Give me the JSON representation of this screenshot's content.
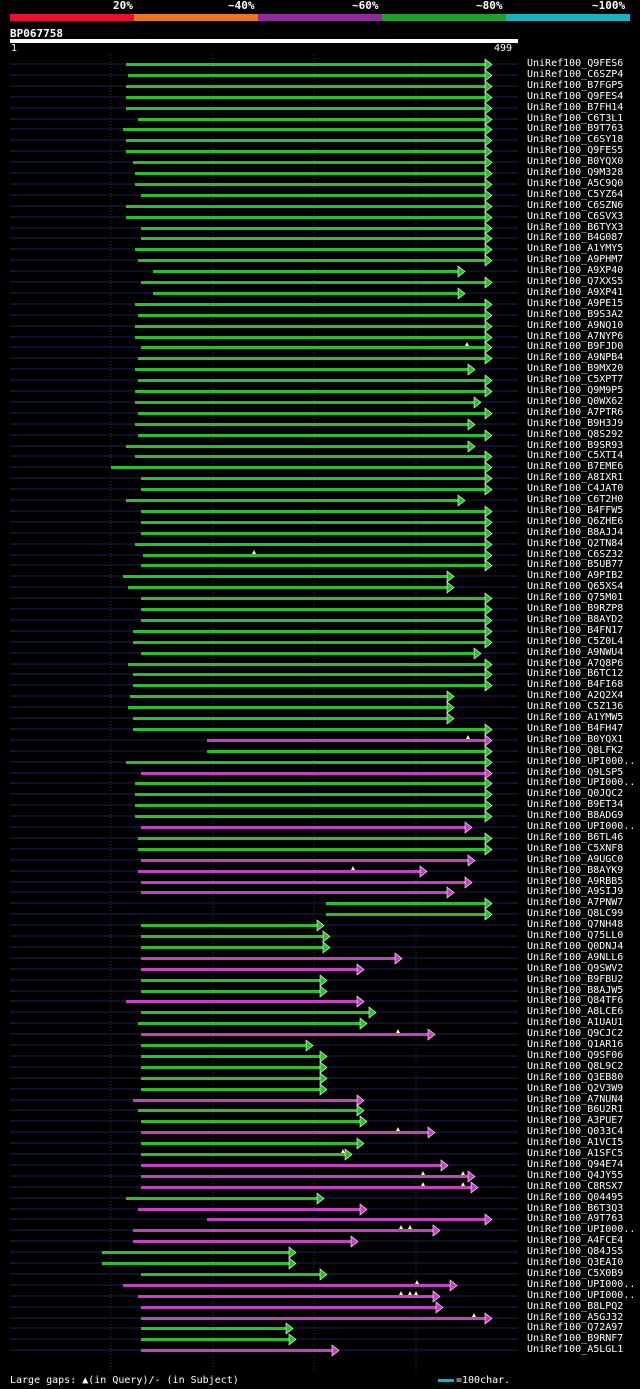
{
  "legend": {
    "labels": [
      "20%",
      "~40%",
      "~60%",
      "~80%",
      "~100%"
    ],
    "colors": [
      "#e8112d",
      "#e87722",
      "#8e2c9a",
      "#229e2a",
      "#1ab3bd"
    ]
  },
  "query": {
    "id": "BP067758",
    "start": "1",
    "end": "499"
  },
  "footer": {
    "gaps_text": "Large gaps: ▲(in Query)/- (in Subject)",
    "scale_text": "=100char."
  },
  "hits": [
    {
      "label": "UniRef100_Q9FES6",
      "s": 126,
      "e": 485,
      "c": "g",
      "m": []
    },
    {
      "label": "UniRef100_C6SZP4",
      "s": 128,
      "e": 485,
      "c": "g",
      "m": []
    },
    {
      "label": "UniRef100_B7FGP5",
      "s": 126,
      "e": 485,
      "c": "g",
      "m": []
    },
    {
      "label": "UniRef100_Q9FES4",
      "s": 126,
      "e": 485,
      "c": "g",
      "m": []
    },
    {
      "label": "UniRef100_B7FH14",
      "s": 126,
      "e": 485,
      "c": "g",
      "m": []
    },
    {
      "label": "UniRef100_C6T3L1",
      "s": 138,
      "e": 485,
      "c": "g",
      "m": []
    },
    {
      "label": "UniRef100_B9T763",
      "s": 123,
      "e": 485,
      "c": "g",
      "m": []
    },
    {
      "label": "UniRef100_C6SY18",
      "s": 126,
      "e": 485,
      "c": "g",
      "m": []
    },
    {
      "label": "UniRef100_Q9FES5",
      "s": 126,
      "e": 485,
      "c": "g",
      "m": []
    },
    {
      "label": "UniRef100_B0YQX0",
      "s": 133,
      "e": 485,
      "c": "g",
      "m": []
    },
    {
      "label": "UniRef100_Q9M328",
      "s": 135,
      "e": 485,
      "c": "g",
      "m": []
    },
    {
      "label": "UniRef100_A5C9Q0",
      "s": 135,
      "e": 485,
      "c": "g",
      "m": []
    },
    {
      "label": "UniRef100_C5YZ64",
      "s": 141,
      "e": 485,
      "c": "g",
      "m": []
    },
    {
      "label": "UniRef100_C6SZN6",
      "s": 126,
      "e": 485,
      "c": "g",
      "m": []
    },
    {
      "label": "UniRef100_C6SVX3",
      "s": 126,
      "e": 485,
      "c": "g",
      "m": []
    },
    {
      "label": "UniRef100_B6TYX3",
      "s": 141,
      "e": 485,
      "c": "g",
      "m": []
    },
    {
      "label": "UniRef100_B4G087",
      "s": 141,
      "e": 485,
      "c": "g",
      "m": []
    },
    {
      "label": "UniRef100_A1YMY5",
      "s": 135,
      "e": 485,
      "c": "g",
      "m": []
    },
    {
      "label": "UniRef100_A9PHM7",
      "s": 138,
      "e": 485,
      "c": "g",
      "m": []
    },
    {
      "label": "UniRef100_A9XP40",
      "s": 153,
      "e": 458,
      "c": "g",
      "m": []
    },
    {
      "label": "UniRef100_Q7XXS5",
      "s": 141,
      "e": 485,
      "c": "g",
      "m": []
    },
    {
      "label": "UniRef100_A9XP41",
      "s": 153,
      "e": 458,
      "c": "g",
      "m": []
    },
    {
      "label": "UniRef100_A9PE15",
      "s": 135,
      "e": 485,
      "c": "g",
      "m": []
    },
    {
      "label": "UniRef100_B9S3A2",
      "s": 138,
      "e": 485,
      "c": "g",
      "m": []
    },
    {
      "label": "UniRef100_A9NQ10",
      "s": 135,
      "e": 485,
      "c": "g",
      "m": []
    },
    {
      "label": "UniRef100_A7NYP6",
      "s": 135,
      "e": 485,
      "c": "g",
      "m": []
    },
    {
      "label": "UniRef100_B9FJD0",
      "s": 141,
      "e": 485,
      "c": "g",
      "m": [
        467
      ]
    },
    {
      "label": "UniRef100_A9NPB4",
      "s": 138,
      "e": 485,
      "c": "g",
      "m": []
    },
    {
      "label": "UniRef100_B9MX20",
      "s": 135,
      "e": 468,
      "c": "g",
      "m": []
    },
    {
      "label": "UniRef100_C5XPT7",
      "s": 138,
      "e": 485,
      "c": "g",
      "m": []
    },
    {
      "label": "UniRef100_Q9M9P5",
      "s": 135,
      "e": 485,
      "c": "g",
      "m": []
    },
    {
      "label": "UniRef100_Q0WX62",
      "s": 135,
      "e": 474,
      "c": "g",
      "m": []
    },
    {
      "label": "UniRef100_A7PTR6",
      "s": 138,
      "e": 485,
      "c": "g",
      "m": []
    },
    {
      "label": "UniRef100_B9H3J9",
      "s": 135,
      "e": 468,
      "c": "g",
      "m": []
    },
    {
      "label": "UniRef100_Q8S292",
      "s": 138,
      "e": 485,
      "c": "g",
      "m": []
    },
    {
      "label": "UniRef100_B9SR93",
      "s": 126,
      "e": 468,
      "c": "g",
      "m": []
    },
    {
      "label": "UniRef100_C5XTI4",
      "s": 135,
      "e": 485,
      "c": "g",
      "m": []
    },
    {
      "label": "UniRef100_B7EME6",
      "s": 111,
      "e": 485,
      "c": "g",
      "m": []
    },
    {
      "label": "UniRef100_A8IXR1",
      "s": 141,
      "e": 485,
      "c": "g",
      "m": []
    },
    {
      "label": "UniRef100_C4JAT0",
      "s": 141,
      "e": 485,
      "c": "g",
      "m": []
    },
    {
      "label": "UniRef100_C6T2H0",
      "s": 126,
      "e": 458,
      "c": "g",
      "m": []
    },
    {
      "label": "UniRef100_B4FFW5",
      "s": 141,
      "e": 485,
      "c": "g",
      "m": []
    },
    {
      "label": "UniRef100_Q6ZHE6",
      "s": 141,
      "e": 485,
      "c": "g",
      "m": []
    },
    {
      "label": "UniRef100_B8AJJ4",
      "s": 141,
      "e": 485,
      "c": "g",
      "m": []
    },
    {
      "label": "UniRef100_Q2TN84",
      "s": 135,
      "e": 485,
      "c": "g",
      "m": []
    },
    {
      "label": "UniRef100_C6SZ32",
      "s": 143,
      "e": 485,
      "c": "g",
      "m": [
        254
      ]
    },
    {
      "label": "UniRef100_B5UB77",
      "s": 141,
      "e": 485,
      "c": "g",
      "m": []
    },
    {
      "label": "UniRef100_A9PIB2",
      "s": 123,
      "e": 447,
      "c": "g",
      "m": []
    },
    {
      "label": "UniRef100_Q65XS4",
      "s": 128,
      "e": 447,
      "c": "g",
      "m": []
    },
    {
      "label": "UniRef100_Q75M01",
      "s": 141,
      "e": 485,
      "c": "g",
      "m": []
    },
    {
      "label": "UniRef100_B9RZP8",
      "s": 141,
      "e": 485,
      "c": "g",
      "m": []
    },
    {
      "label": "UniRef100_B8AYD2",
      "s": 141,
      "e": 485,
      "c": "g",
      "m": []
    },
    {
      "label": "UniRef100_B4FN17",
      "s": 133,
      "e": 485,
      "c": "g",
      "m": []
    },
    {
      "label": "UniRef100_C5Z0L4",
      "s": 133,
      "e": 485,
      "c": "g",
      "m": []
    },
    {
      "label": "UniRef100_A9NWU4",
      "s": 141,
      "e": 474,
      "c": "g",
      "m": []
    },
    {
      "label": "UniRef100_A7Q8P6",
      "s": 128,
      "e": 485,
      "c": "g",
      "m": []
    },
    {
      "label": "UniRef100_B6TC12",
      "s": 133,
      "e": 485,
      "c": "g",
      "m": []
    },
    {
      "label": "UniRef100_B4FI68",
      "s": 133,
      "e": 485,
      "c": "g",
      "m": []
    },
    {
      "label": "UniRef100_A2Q2X4",
      "s": 130,
      "e": 447,
      "c": "g",
      "m": []
    },
    {
      "label": "UniRef100_C5Z136",
      "s": 128,
      "e": 447,
      "c": "g",
      "m": []
    },
    {
      "label": "UniRef100_A1YMW5",
      "s": 133,
      "e": 447,
      "c": "g",
      "m": []
    },
    {
      "label": "UniRef100_B4FH47",
      "s": 133,
      "e": 485,
      "c": "g",
      "m": []
    },
    {
      "label": "UniRef100_B0YQX1",
      "s": 207,
      "e": 485,
      "c": "p",
      "m": [
        468
      ]
    },
    {
      "label": "UniRef100_Q8LFK2",
      "s": 207,
      "e": 485,
      "c": "g",
      "m": []
    },
    {
      "label": "UniRef100_UPI000..",
      "s": 126,
      "e": 485,
      "c": "g",
      "m": []
    },
    {
      "label": "UniRef100_Q9LSP5",
      "s": 141,
      "e": 485,
      "c": "p",
      "m": []
    },
    {
      "label": "UniRef100_UPI000..",
      "s": 135,
      "e": 485,
      "c": "g",
      "m": []
    },
    {
      "label": "UniRef100_Q0JQC2",
      "s": 135,
      "e": 485,
      "c": "g",
      "m": []
    },
    {
      "label": "UniRef100_B9ET34",
      "s": 135,
      "e": 485,
      "c": "g",
      "m": []
    },
    {
      "label": "UniRef100_B8ADG9",
      "s": 135,
      "e": 485,
      "c": "g",
      "m": []
    },
    {
      "label": "UniRef100_UPI000..",
      "s": 141,
      "e": 465,
      "c": "p",
      "m": []
    },
    {
      "label": "UniRef100_B6TL46",
      "s": 138,
      "e": 485,
      "c": "g",
      "m": []
    },
    {
      "label": "UniRef100_C5XNF8",
      "s": 138,
      "e": 485,
      "c": "g",
      "m": []
    },
    {
      "label": "UniRef100_A9UGC0",
      "s": 141,
      "e": 468,
      "c": "p",
      "m": []
    },
    {
      "label": "UniRef100_B8AYK9",
      "s": 138,
      "e": 420,
      "c": "p",
      "m": [
        353
      ]
    },
    {
      "label": "UniRef100_A9RBB5",
      "s": 141,
      "e": 465,
      "c": "p",
      "m": []
    },
    {
      "label": "UniRef100_A9SIJ9",
      "s": 141,
      "e": 447,
      "c": "p",
      "m": []
    },
    {
      "label": "UniRef100_A7PNW7",
      "s": 326,
      "e": 485,
      "c": "g",
      "m": []
    },
    {
      "label": "UniRef100_Q8LC99",
      "s": 326,
      "e": 485,
      "c": "g",
      "m": []
    },
    {
      "label": "UniRef100_Q7NH48",
      "s": 141,
      "e": 317,
      "c": "g",
      "m": []
    },
    {
      "label": "UniRef100_Q75LL0",
      "s": 141,
      "e": 323,
      "c": "g",
      "m": []
    },
    {
      "label": "UniRef100_Q0DNJ4",
      "s": 141,
      "e": 323,
      "c": "g",
      "m": []
    },
    {
      "label": "UniRef100_A9NLL6",
      "s": 141,
      "e": 395,
      "c": "p",
      "m": []
    },
    {
      "label": "UniRef100_Q9SWV2",
      "s": 141,
      "e": 357,
      "c": "p",
      "m": []
    },
    {
      "label": "UniRef100_B9FBU2",
      "s": 141,
      "e": 320,
      "c": "g",
      "m": []
    },
    {
      "label": "UniRef100_B8AJW5",
      "s": 141,
      "e": 320,
      "c": "g",
      "m": []
    },
    {
      "label": "UniRef100_Q84TF6",
      "s": 126,
      "e": 357,
      "c": "p",
      "m": []
    },
    {
      "label": "UniRef100_A8LCE6",
      "s": 141,
      "e": 369,
      "c": "g",
      "m": []
    },
    {
      "label": "UniRef100_A1UAU1",
      "s": 138,
      "e": 360,
      "c": "g",
      "m": []
    },
    {
      "label": "UniRef100_Q9CJC2",
      "s": 141,
      "e": 428,
      "c": "p",
      "m": [
        398
      ]
    },
    {
      "label": "UniRef100_Q1AR16",
      "s": 141,
      "e": 306,
      "c": "g",
      "m": []
    },
    {
      "label": "UniRef100_Q9SF06",
      "s": 141,
      "e": 320,
      "c": "g",
      "m": []
    },
    {
      "label": "UniRef100_Q8L9C2",
      "s": 141,
      "e": 320,
      "c": "g",
      "m": []
    },
    {
      "label": "UniRef100_Q3EB80",
      "s": 141,
      "e": 320,
      "c": "g",
      "m": []
    },
    {
      "label": "UniRef100_Q2V3W9",
      "s": 141,
      "e": 320,
      "c": "g",
      "m": []
    },
    {
      "label": "UniRef100_A7NUN4",
      "s": 133,
      "e": 357,
      "c": "p",
      "m": []
    },
    {
      "label": "UniRef100_B6U2R1",
      "s": 138,
      "e": 357,
      "c": "g",
      "m": []
    },
    {
      "label": "UniRef100_A3PUE7",
      "s": 141,
      "e": 360,
      "c": "g",
      "m": []
    },
    {
      "label": "UniRef100_Q033C4",
      "s": 141,
      "e": 428,
      "c": "p",
      "m": [
        398
      ]
    },
    {
      "label": "UniRef100_A1VCI5",
      "s": 141,
      "e": 357,
      "c": "g",
      "m": []
    },
    {
      "label": "UniRef100_A1SFC5",
      "s": 141,
      "e": 345,
      "c": "g",
      "m": [
        343
      ]
    },
    {
      "label": "UniRef100_Q94E74",
      "s": 141,
      "e": 441,
      "c": "p",
      "m": []
    },
    {
      "label": "UniRef100_Q4JY55",
      "s": 141,
      "e": 468,
      "c": "p",
      "m": [
        423,
        463
      ]
    },
    {
      "label": "UniRef100_C8RSX7",
      "s": 141,
      "e": 471,
      "c": "p",
      "m": [
        423,
        463
      ]
    },
    {
      "label": "UniRef100_Q04495",
      "s": 126,
      "e": 317,
      "c": "g",
      "m": []
    },
    {
      "label": "UniRef100_B6T3Q3",
      "s": 138,
      "e": 360,
      "c": "p",
      "m": []
    },
    {
      "label": "UniRef100_A9T763",
      "s": 207,
      "e": 485,
      "c": "p",
      "m": []
    },
    {
      "label": "UniRef100_UPI000..",
      "s": 133,
      "e": 433,
      "c": "p",
      "m": [
        401,
        410
      ]
    },
    {
      "label": "UniRef100_A4FCE4",
      "s": 133,
      "e": 351,
      "c": "p",
      "m": []
    },
    {
      "label": "UniRef100_Q84JS5",
      "s": 102,
      "e": 289,
      "c": "g",
      "m": []
    },
    {
      "label": "UniRef100_Q3EAI0",
      "s": 102,
      "e": 289,
      "c": "g",
      "m": []
    },
    {
      "label": "UniRef100_C5X0B9",
      "s": 141,
      "e": 320,
      "c": "g",
      "m": []
    },
    {
      "label": "UniRef100_UPI000..",
      "s": 123,
      "e": 450,
      "c": "p",
      "m": [
        417
      ]
    },
    {
      "label": "UniRef100_UPI000..",
      "s": 138,
      "e": 433,
      "c": "p",
      "m": [
        401,
        410,
        416
      ]
    },
    {
      "label": "UniRef100_B8LPQ2",
      "s": 141,
      "e": 436,
      "c": "p",
      "m": []
    },
    {
      "label": "UniRef100_A5GJ32",
      "s": 141,
      "e": 485,
      "c": "p",
      "m": [
        474
      ]
    },
    {
      "label": "UniRef100_Q72A97",
      "s": 141,
      "e": 286,
      "c": "g",
      "m": []
    },
    {
      "label": "UniRef100_B9RNF7",
      "s": 141,
      "e": 289,
      "c": "g",
      "m": []
    },
    {
      "label": "UniRef100_A5LGL1",
      "s": 141,
      "e": 332,
      "c": "p",
      "m": []
    }
  ]
}
